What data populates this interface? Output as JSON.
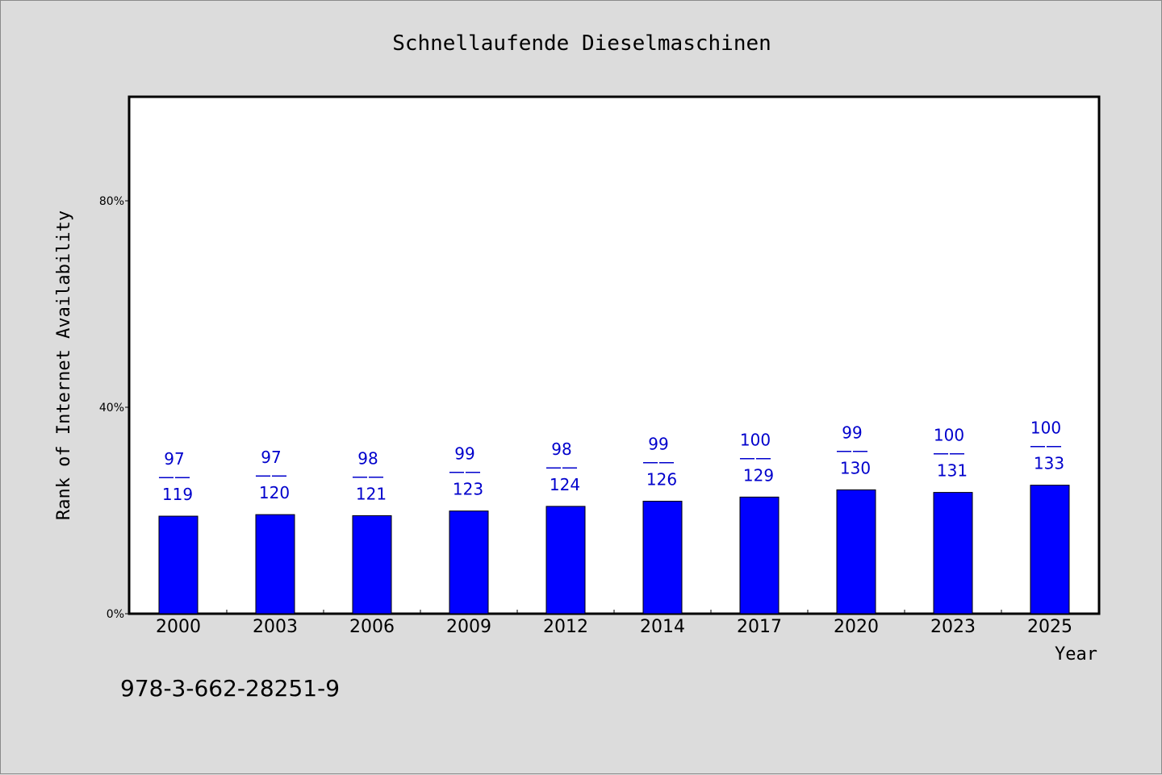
{
  "chart_data": {
    "type": "bar",
    "title": "Schnellaufende Dieselmaschinen",
    "xlabel": "Year",
    "ylabel": "Rank of Internet Availability",
    "ylim": [
      0,
      100
    ],
    "yticks": [
      {
        "value": 0,
        "label": "0%"
      },
      {
        "value": 40,
        "label": "40%"
      },
      {
        "value": 80,
        "label": "80%"
      }
    ],
    "categories": [
      "2000",
      "2003",
      "2006",
      "2009",
      "2012",
      "2014",
      "2017",
      "2020",
      "2023",
      "2025"
    ],
    "values": [
      18.9,
      19.2,
      19.0,
      19.9,
      20.8,
      21.8,
      22.6,
      24.0,
      23.5,
      24.9
    ],
    "bar_labels": [
      {
        "top": "97",
        "bottom": "119"
      },
      {
        "top": "97",
        "bottom": "120"
      },
      {
        "top": "98",
        "bottom": "121"
      },
      {
        "top": "99",
        "bottom": "123"
      },
      {
        "top": "98",
        "bottom": "124"
      },
      {
        "top": "99",
        "bottom": "126"
      },
      {
        "top": "100",
        "bottom": "129"
      },
      {
        "top": "99",
        "bottom": "130"
      },
      {
        "top": "100",
        "bottom": "131"
      },
      {
        "top": "100",
        "bottom": "133"
      }
    ],
    "label_separator": "——",
    "grid": false,
    "colors": {
      "bar": "#0000ff",
      "label": "#0000cc",
      "background": "#dcdcdc",
      "plot_background": "#ffffff"
    }
  },
  "footer": {
    "isbn": "978-3-662-28251-9"
  }
}
